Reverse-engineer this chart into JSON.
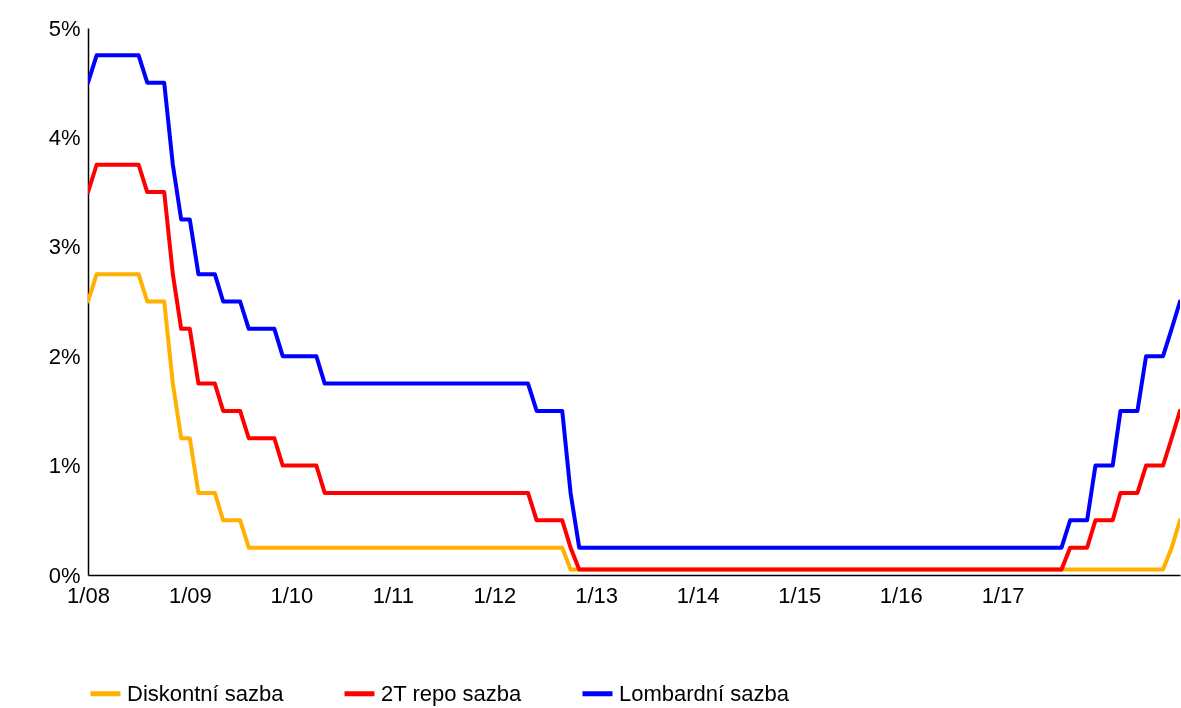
{
  "chart_data": {
    "type": "line",
    "legend": "bottom",
    "line_style": "solid",
    "x": [
      "2008-01",
      "2008-02",
      "2008-03",
      "2008-04",
      "2008-05",
      "2008-06",
      "2008-07",
      "2008-08",
      "2008-09",
      "2008-10",
      "2008-11",
      "2008-12",
      "2009-01",
      "2009-02",
      "2009-03",
      "2009-04",
      "2009-05",
      "2009-06",
      "2009-07",
      "2009-08",
      "2009-09",
      "2009-10",
      "2009-11",
      "2009-12",
      "2010-01",
      "2010-02",
      "2010-03",
      "2010-04",
      "2010-05",
      "2010-06",
      "2010-07",
      "2010-08",
      "2010-09",
      "2010-10",
      "2010-11",
      "2010-12",
      "2011-01",
      "2011-02",
      "2011-03",
      "2011-04",
      "2011-05",
      "2011-06",
      "2011-07",
      "2011-08",
      "2011-09",
      "2011-10",
      "2011-11",
      "2011-12",
      "2012-01",
      "2012-02",
      "2012-03",
      "2012-04",
      "2012-05",
      "2012-06",
      "2012-07",
      "2012-08",
      "2012-09",
      "2012-10",
      "2012-11",
      "2012-12",
      "2013-01",
      "2013-02",
      "2013-03",
      "2013-04",
      "2013-05",
      "2013-06",
      "2013-07",
      "2013-08",
      "2013-09",
      "2013-10",
      "2013-11",
      "2013-12",
      "2014-01",
      "2014-02",
      "2014-03",
      "2014-04",
      "2014-05",
      "2014-06",
      "2014-07",
      "2014-08",
      "2014-09",
      "2014-10",
      "2014-11",
      "2014-12",
      "2015-01",
      "2015-02",
      "2015-03",
      "2015-04",
      "2015-05",
      "2015-06",
      "2015-07",
      "2015-08",
      "2015-09",
      "2015-10",
      "2015-11",
      "2015-12",
      "2016-01",
      "2016-02",
      "2016-03",
      "2016-04",
      "2016-05",
      "2016-06",
      "2016-07",
      "2016-08",
      "2016-09",
      "2016-10",
      "2016-11",
      "2016-12",
      "2017-01",
      "2017-02",
      "2017-03",
      "2017-04",
      "2017-05",
      "2017-06",
      "2017-07",
      "2017-08",
      "2017-09",
      "2017-10",
      "2017-11",
      "2017-12",
      "2018-01",
      "2018-02",
      "2018-03",
      "2018-04",
      "2018-05",
      "2018-06",
      "2018-07",
      "2018-08",
      "2018-09",
      "2018-10"
    ],
    "xlim": [
      "2008-01",
      "2018-10"
    ],
    "xticks": [
      {
        "value": "2008-01",
        "label": "1/08"
      },
      {
        "value": "2009-01",
        "label": "1/09"
      },
      {
        "value": "2010-01",
        "label": "1/10"
      },
      {
        "value": "2011-01",
        "label": "1/11"
      },
      {
        "value": "2012-01",
        "label": "1/12"
      },
      {
        "value": "2013-01",
        "label": "1/13"
      },
      {
        "value": "2014-01",
        "label": "1/14"
      },
      {
        "value": "2015-01",
        "label": "1/15"
      },
      {
        "value": "2016-01",
        "label": "1/16"
      },
      {
        "value": "2017-01",
        "label": "1/17"
      }
    ],
    "ylim": [
      0,
      5
    ],
    "yticks": [
      {
        "value": 0,
        "label": "0%"
      },
      {
        "value": 1,
        "label": "1%"
      },
      {
        "value": 2,
        "label": "2%"
      },
      {
        "value": 3,
        "label": "3%"
      },
      {
        "value": 4,
        "label": "4%"
      },
      {
        "value": 5,
        "label": "5%"
      }
    ],
    "series": [
      {
        "name": "Diskontní sazba",
        "color": "#ffb000",
        "values": [
          2.5,
          2.75,
          2.75,
          2.75,
          2.75,
          2.75,
          2.75,
          2.5,
          2.5,
          2.5,
          1.75,
          1.25,
          1.25,
          0.75,
          0.75,
          0.75,
          0.5,
          0.5,
          0.5,
          0.25,
          0.25,
          0.25,
          0.25,
          0.25,
          0.25,
          0.25,
          0.25,
          0.25,
          0.25,
          0.25,
          0.25,
          0.25,
          0.25,
          0.25,
          0.25,
          0.25,
          0.25,
          0.25,
          0.25,
          0.25,
          0.25,
          0.25,
          0.25,
          0.25,
          0.25,
          0.25,
          0.25,
          0.25,
          0.25,
          0.25,
          0.25,
          0.25,
          0.25,
          0.25,
          0.25,
          0.25,
          0.25,
          0.05,
          0.05,
          0.05,
          0.05,
          0.05,
          0.05,
          0.05,
          0.05,
          0.05,
          0.05,
          0.05,
          0.05,
          0.05,
          0.05,
          0.05,
          0.05,
          0.05,
          0.05,
          0.05,
          0.05,
          0.05,
          0.05,
          0.05,
          0.05,
          0.05,
          0.05,
          0.05,
          0.05,
          0.05,
          0.05,
          0.05,
          0.05,
          0.05,
          0.05,
          0.05,
          0.05,
          0.05,
          0.05,
          0.05,
          0.05,
          0.05,
          0.05,
          0.05,
          0.05,
          0.05,
          0.05,
          0.05,
          0.05,
          0.05,
          0.05,
          0.05,
          0.05,
          0.05,
          0.05,
          0.05,
          0.05,
          0.05,
          0.05,
          0.05,
          0.05,
          0.05,
          0.05,
          0.05,
          0.05,
          0.05,
          0.05,
          0.05,
          0.05,
          0.05,
          0.05,
          0.05,
          0.25,
          0.5
        ]
      },
      {
        "name": "2T repo sazba",
        "color": "#ff0000",
        "values": [
          3.5,
          3.75,
          3.75,
          3.75,
          3.75,
          3.75,
          3.75,
          3.5,
          3.5,
          3.5,
          2.75,
          2.25,
          2.25,
          1.75,
          1.75,
          1.75,
          1.5,
          1.5,
          1.5,
          1.25,
          1.25,
          1.25,
          1.25,
          1.0,
          1.0,
          1.0,
          1.0,
          1.0,
          0.75,
          0.75,
          0.75,
          0.75,
          0.75,
          0.75,
          0.75,
          0.75,
          0.75,
          0.75,
          0.75,
          0.75,
          0.75,
          0.75,
          0.75,
          0.75,
          0.75,
          0.75,
          0.75,
          0.75,
          0.75,
          0.75,
          0.75,
          0.75,
          0.75,
          0.5,
          0.5,
          0.5,
          0.5,
          0.25,
          0.05,
          0.05,
          0.05,
          0.05,
          0.05,
          0.05,
          0.05,
          0.05,
          0.05,
          0.05,
          0.05,
          0.05,
          0.05,
          0.05,
          0.05,
          0.05,
          0.05,
          0.05,
          0.05,
          0.05,
          0.05,
          0.05,
          0.05,
          0.05,
          0.05,
          0.05,
          0.05,
          0.05,
          0.05,
          0.05,
          0.05,
          0.05,
          0.05,
          0.05,
          0.05,
          0.05,
          0.05,
          0.05,
          0.05,
          0.05,
          0.05,
          0.05,
          0.05,
          0.05,
          0.05,
          0.05,
          0.05,
          0.05,
          0.05,
          0.05,
          0.05,
          0.05,
          0.05,
          0.05,
          0.05,
          0.05,
          0.05,
          0.05,
          0.25,
          0.25,
          0.25,
          0.5,
          0.5,
          0.5,
          0.75,
          0.75,
          0.75,
          1.0,
          1.0,
          1.0,
          1.25,
          1.5
        ]
      },
      {
        "name": "Lombardní sazba",
        "color": "#0000ff",
        "values": [
          4.5,
          4.75,
          4.75,
          4.75,
          4.75,
          4.75,
          4.75,
          4.5,
          4.5,
          4.5,
          3.75,
          3.25,
          3.25,
          2.75,
          2.75,
          2.75,
          2.5,
          2.5,
          2.5,
          2.25,
          2.25,
          2.25,
          2.25,
          2.0,
          2.0,
          2.0,
          2.0,
          2.0,
          1.75,
          1.75,
          1.75,
          1.75,
          1.75,
          1.75,
          1.75,
          1.75,
          1.75,
          1.75,
          1.75,
          1.75,
          1.75,
          1.75,
          1.75,
          1.75,
          1.75,
          1.75,
          1.75,
          1.75,
          1.75,
          1.75,
          1.75,
          1.75,
          1.75,
          1.5,
          1.5,
          1.5,
          1.5,
          0.75,
          0.25,
          0.25,
          0.25,
          0.25,
          0.25,
          0.25,
          0.25,
          0.25,
          0.25,
          0.25,
          0.25,
          0.25,
          0.25,
          0.25,
          0.25,
          0.25,
          0.25,
          0.25,
          0.25,
          0.25,
          0.25,
          0.25,
          0.25,
          0.25,
          0.25,
          0.25,
          0.25,
          0.25,
          0.25,
          0.25,
          0.25,
          0.25,
          0.25,
          0.25,
          0.25,
          0.25,
          0.25,
          0.25,
          0.25,
          0.25,
          0.25,
          0.25,
          0.25,
          0.25,
          0.25,
          0.25,
          0.25,
          0.25,
          0.25,
          0.25,
          0.25,
          0.25,
          0.25,
          0.25,
          0.25,
          0.25,
          0.25,
          0.25,
          0.5,
          0.5,
          0.5,
          1.0,
          1.0,
          1.0,
          1.5,
          1.5,
          1.5,
          2.0,
          2.0,
          2.0,
          2.25,
          2.5
        ]
      }
    ]
  }
}
